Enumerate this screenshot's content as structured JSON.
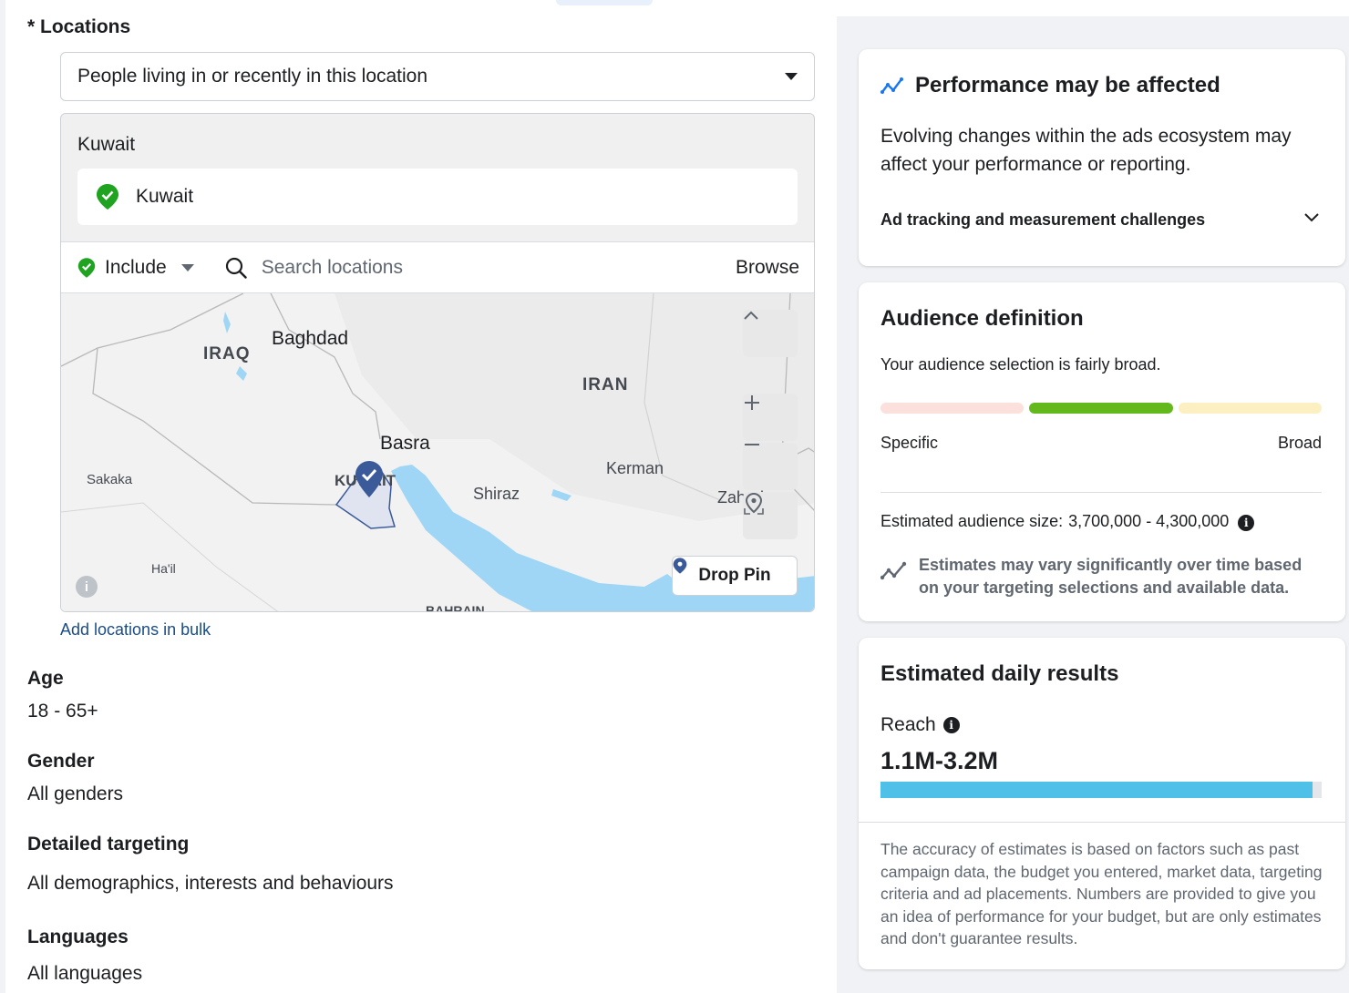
{
  "locations": {
    "title": "* Locations",
    "mode_selected": "People living in or recently in this location",
    "country_header": "Kuwait",
    "selected_chip": "Kuwait",
    "include_label": "Include",
    "search_placeholder": "Search locations",
    "browse_label": "Browse",
    "map": {
      "labels": [
        "IRAQ",
        "Baghdad",
        "IRAN",
        "Basra",
        "KUWAIT",
        "Kerman",
        "Sakaka",
        "Shiraz",
        "Zahedan",
        "Ha'il",
        "BAHRAIN"
      ],
      "drop_pin_label": "Drop Pin",
      "info_glyph": "i",
      "water_color": "#9fd6f6",
      "selection_color": "#3b5a9a"
    },
    "bulk_link": "Add locations in bulk"
  },
  "fields": {
    "age_label": "Age",
    "age_value": "18 - 65+",
    "gender_label": "Gender",
    "gender_value": "All genders",
    "detailed_label": "Detailed targeting",
    "detailed_value": "All demographics, interests and behaviours",
    "languages_label": "Languages",
    "languages_value": "All languages"
  },
  "performance": {
    "title": "Performance may be affected",
    "body": "Evolving changes within the ads ecosystem may affect your performance or reporting.",
    "link": "Ad tracking and measurement challenges"
  },
  "audience": {
    "title": "Audience definition",
    "description": "Your audience selection is fairly broad.",
    "meter_low": "Specific",
    "meter_high": "Broad",
    "meter_active_segment": 2,
    "meter_colors": [
      "#fbe0dc",
      "#63b81e",
      "#fcefc1"
    ],
    "size_label": "Estimated audience size:",
    "size_value": "3,700,000 - 4,300,000",
    "note": "Estimates may vary significantly over time based on your targeting selections and available data."
  },
  "results": {
    "title": "Estimated daily results",
    "reach_label": "Reach",
    "reach_value": "1.1M-3.2M",
    "reach_bar_fraction": 0.98,
    "reach_bar_color": "#4fc0e8",
    "disclaimer": "The accuracy of estimates is based on factors such as past campaign data, the budget you entered, market data, targeting criteria and ad placements. Numbers are provided to give you an idea of performance for your budget, but are only estimates and don't guarantee results."
  },
  "icons": {
    "include_pin": "green-check-pin-icon",
    "search": "search-icon",
    "zoom_in": "plus-icon",
    "zoom_out": "minus-icon",
    "collapse": "chevron-up-icon",
    "locate": "locate-icon",
    "perf": "trend-line-icon",
    "info": "info-icon",
    "estimate": "trend-estimate-icon",
    "expand": "chevron-down-icon"
  }
}
